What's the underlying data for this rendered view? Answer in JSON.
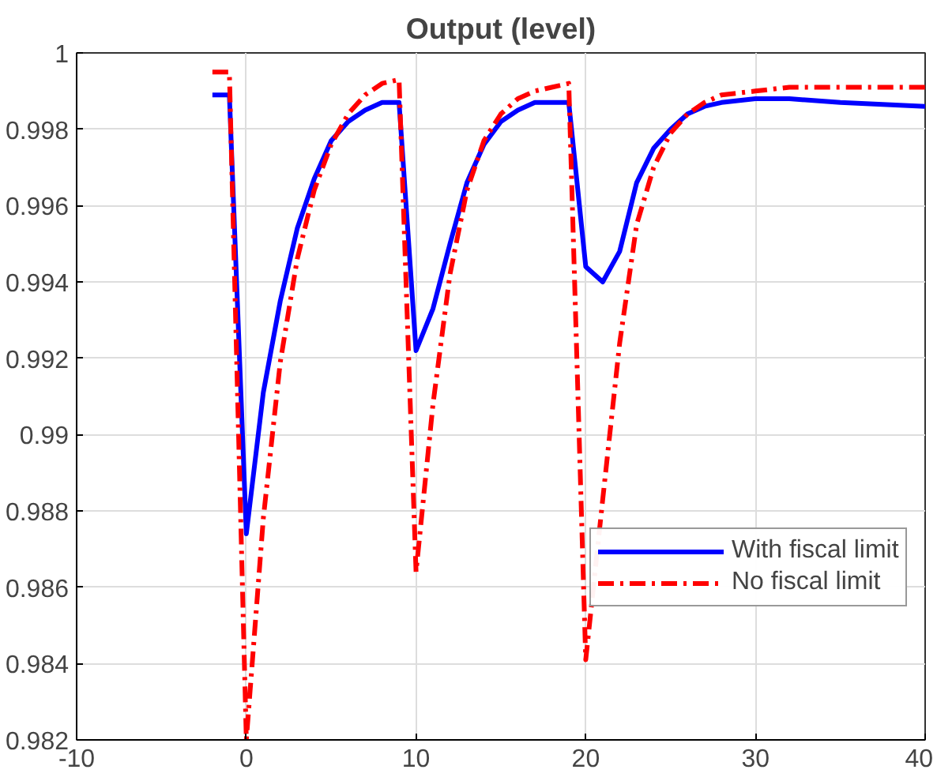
{
  "chart_data": {
    "type": "line",
    "title": "Output (level)",
    "xlim": [
      -10,
      40
    ],
    "xticks": [
      -10,
      0,
      10,
      20,
      30,
      40
    ],
    "ylim": [
      0.982,
      1
    ],
    "yticks": [
      0.982,
      0.984,
      0.986,
      0.988,
      0.99,
      0.992,
      0.994,
      0.996,
      0.998,
      1
    ],
    "grid": true,
    "legend": "bottom right",
    "marker": "none",
    "series": [
      {
        "name": "With fiscal limit",
        "color": "#0000ff",
        "line_style": "solid",
        "x": [
          -2,
          -1,
          0,
          1,
          2,
          3,
          4,
          5,
          6,
          7,
          8,
          9,
          10,
          11,
          12,
          13,
          14,
          15,
          16,
          17,
          18,
          19,
          20,
          21,
          22,
          23,
          24,
          25,
          26,
          27,
          28,
          30,
          32,
          35,
          40
        ],
        "values": [
          0.9989,
          0.9989,
          0.9874,
          0.9911,
          0.9935,
          0.9954,
          0.9967,
          0.9977,
          0.9982,
          0.9985,
          0.9987,
          0.9987,
          0.9922,
          0.9933,
          0.995,
          0.9966,
          0.9976,
          0.9982,
          0.9985,
          0.9987,
          0.9987,
          0.9987,
          0.9944,
          0.994,
          0.9948,
          0.9966,
          0.9975,
          0.998,
          0.9984,
          0.9986,
          0.9987,
          0.9988,
          0.9988,
          0.9987,
          0.9986
        ]
      },
      {
        "name": "No fiscal limit",
        "color": "#ff0000",
        "line_style": "dashed",
        "x": [
          -2,
          -1,
          0,
          1,
          2,
          3,
          4,
          5,
          6,
          7,
          8,
          9,
          10,
          11,
          12,
          13,
          14,
          15,
          16,
          17,
          18,
          19,
          20,
          21,
          22,
          23,
          24,
          25,
          26,
          27,
          28,
          30,
          32,
          35,
          40
        ],
        "values": [
          0.9995,
          0.9995,
          0.982,
          0.9878,
          0.9919,
          0.9946,
          0.9964,
          0.9976,
          0.9984,
          0.9989,
          0.9992,
          0.9993,
          0.9864,
          0.9908,
          0.9942,
          0.9964,
          0.9977,
          0.9984,
          0.9988,
          0.999,
          0.9991,
          0.9992,
          0.9841,
          0.9883,
          0.9924,
          0.9955,
          0.997,
          0.9979,
          0.9984,
          0.9987,
          0.9989,
          0.999,
          0.9991,
          0.9991,
          0.9991
        ]
      }
    ]
  }
}
